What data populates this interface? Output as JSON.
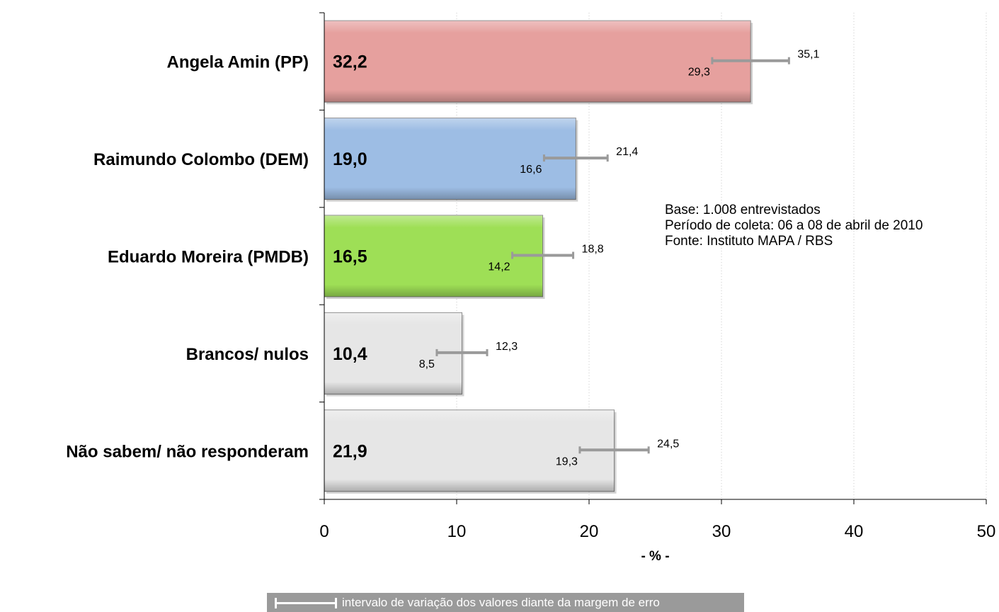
{
  "chart_data": {
    "type": "bar",
    "orientation": "horizontal",
    "categories": [
      "Angela Amin (PP)",
      "Raimundo Colombo (DEM)",
      "Eduardo Moreira (PMDB)",
      "Brancos/ nulos",
      "Não sabem/ não responderam"
    ],
    "values": [
      32.2,
      19.0,
      16.5,
      10.4,
      21.9
    ],
    "value_labels": [
      "32,2",
      "19,0",
      "16,5",
      "10,4",
      "21,9"
    ],
    "error_low": [
      29.3,
      16.6,
      14.2,
      8.5,
      19.3
    ],
    "error_high": [
      35.1,
      21.4,
      18.8,
      12.3,
      24.5
    ],
    "error_low_labels": [
      "29,3",
      "16,6",
      "14,2",
      "8,5",
      "19,3"
    ],
    "error_high_labels": [
      "35,1",
      "21,4",
      "18,8",
      "12,3",
      "24,5"
    ],
    "colors": [
      "#e6a09e",
      "#9dbde4",
      "#9edf56",
      "#e6e6e6",
      "#e6e6e6"
    ],
    "xlim": [
      0,
      50
    ],
    "xticks": [
      0,
      10,
      20,
      30,
      40,
      50
    ],
    "xlabel": "- % -",
    "grid": "vertical dotted",
    "error_bar_color": "#9a9a9a"
  },
  "notes": [
    "Base: 1.008 entrevistados",
    "Período de coleta: 06 a 08 de abril de 2010",
    "Fonte: Instituto MAPA / RBS"
  ],
  "legend": {
    "text": "intervalo de variação dos valores diante da margem de erro",
    "background": "#9a9a9a"
  }
}
